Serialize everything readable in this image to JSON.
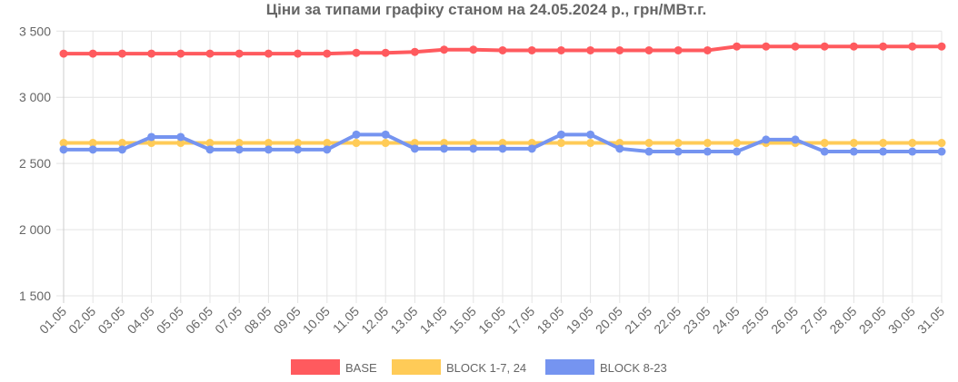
{
  "chart_data": {
    "type": "line",
    "title": "Ціни за типами графіку станом на 24.05.2024 р., грн/МВт.г.",
    "xlabel": "",
    "ylabel": "",
    "ylim": [
      1500,
      3500
    ],
    "yticks": [
      "1 500",
      "2 000",
      "2 500",
      "3 000",
      "3 500"
    ],
    "ytick_values": [
      1500,
      2000,
      2500,
      3000,
      3500
    ],
    "grid": true,
    "legend_position": "bottom",
    "categories": [
      "01.05",
      "02.05",
      "03.05",
      "04.05",
      "05.05",
      "06.05",
      "07.05",
      "08.05",
      "09.05",
      "10.05",
      "11.05",
      "12.05",
      "13.05",
      "14.05",
      "15.05",
      "16.05",
      "17.05",
      "18.05",
      "19.05",
      "20.05",
      "21.05",
      "22.05",
      "23.05",
      "24.05",
      "25.05",
      "26.05",
      "27.05",
      "28.05",
      "29.05",
      "30.05",
      "31.05"
    ],
    "series": [
      {
        "name": "BASE",
        "color": "#ff5a5e",
        "values": [
          3330,
          3330,
          3330,
          3330,
          3330,
          3330,
          3330,
          3330,
          3330,
          3330,
          3336,
          3336,
          3343,
          3360,
          3360,
          3355,
          3355,
          3355,
          3355,
          3355,
          3355,
          3355,
          3355,
          3384,
          3384,
          3384,
          3384,
          3384,
          3384,
          3384,
          3384
        ]
      },
      {
        "name": "BLOCK 1-7, 24",
        "color": "#ffcb57",
        "values": [
          2655,
          2655,
          2655,
          2655,
          2655,
          2655,
          2655,
          2655,
          2655,
          2655,
          2655,
          2655,
          2655,
          2655,
          2655,
          2655,
          2655,
          2655,
          2655,
          2655,
          2655,
          2655,
          2655,
          2655,
          2655,
          2655,
          2655,
          2655,
          2655,
          2655,
          2655
        ]
      },
      {
        "name": "BLOCK 8-23",
        "color": "#7594f0",
        "values": [
          2605,
          2605,
          2605,
          2700,
          2700,
          2605,
          2605,
          2605,
          2605,
          2605,
          2718,
          2718,
          2612,
          2612,
          2612,
          2612,
          2612,
          2718,
          2718,
          2612,
          2590,
          2590,
          2590,
          2590,
          2680,
          2680,
          2590,
          2590,
          2590,
          2590,
          2590
        ]
      }
    ]
  }
}
